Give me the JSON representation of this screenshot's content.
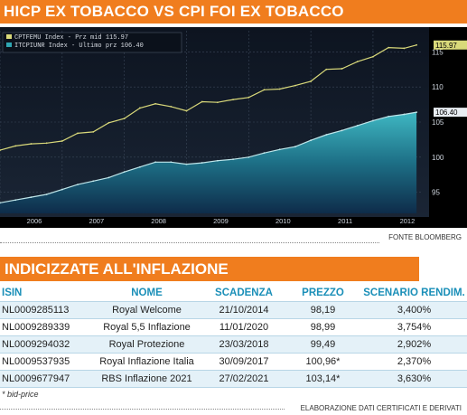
{
  "header": {
    "title": "HICP EX TOBACCO VS CPI FOI EX TOBACCO"
  },
  "source": "FONTE BLOOMBERG",
  "chart_data": {
    "type": "line",
    "x_ticks": [
      "2006",
      "2007",
      "2008",
      "2009",
      "2010",
      "2011",
      "2012"
    ],
    "y_ticks": [
      95,
      100,
      105,
      110,
      115
    ],
    "ylim": [
      92,
      118
    ],
    "xlim": [
      2006,
      2012.8
    ],
    "legend": {
      "position": "top-left",
      "entries": [
        "CPTFEMU Index - Prz mid 115.97",
        "ITCPIUNR Index - Ultimo prz 106.40"
      ]
    },
    "series": [
      {
        "name": "CPTFEMU Index - Prz mid",
        "color": "#d9d97a",
        "last_value": "115.97",
        "x": [
          2006.0,
          2006.25,
          2006.5,
          2006.75,
          2007.0,
          2007.25,
          2007.5,
          2007.75,
          2008.0,
          2008.25,
          2008.5,
          2008.75,
          2009.0,
          2009.25,
          2009.5,
          2009.75,
          2010.0,
          2010.25,
          2010.5,
          2010.75,
          2011.0,
          2011.25,
          2011.5,
          2011.75,
          2012.0,
          2012.25,
          2012.5,
          2012.7
        ],
        "y": [
          101.0,
          101.6,
          101.9,
          102.0,
          102.3,
          103.4,
          103.6,
          104.9,
          105.5,
          107.0,
          107.6,
          107.2,
          106.6,
          107.9,
          107.8,
          108.2,
          108.5,
          109.6,
          109.7,
          110.2,
          110.8,
          112.5,
          112.6,
          113.6,
          114.3,
          115.6,
          115.5,
          115.97
        ]
      },
      {
        "name": "ITCPIUNR Index - Ultimo prz",
        "color": "#2fa6b2",
        "last_value": "106.40",
        "x": [
          2006.0,
          2006.25,
          2006.5,
          2006.75,
          2007.0,
          2007.25,
          2007.5,
          2007.75,
          2008.0,
          2008.25,
          2008.5,
          2008.75,
          2009.0,
          2009.25,
          2009.5,
          2009.75,
          2010.0,
          2010.25,
          2010.5,
          2010.75,
          2011.0,
          2011.25,
          2011.5,
          2011.75,
          2012.0,
          2012.25,
          2012.5,
          2012.7
        ],
        "y": [
          93.5,
          93.9,
          94.3,
          94.7,
          95.4,
          96.1,
          96.6,
          97.1,
          97.9,
          98.6,
          99.3,
          99.3,
          99.0,
          99.2,
          99.5,
          99.7,
          100.0,
          100.6,
          101.1,
          101.5,
          102.4,
          103.2,
          103.8,
          104.5,
          105.2,
          105.8,
          106.1,
          106.4
        ]
      }
    ]
  },
  "table": {
    "title": "INDICIZZATE ALL'INFLAZIONE",
    "headers": [
      "ISIN",
      "NOME",
      "SCADENZA",
      "PREZZO",
      "SCENARIO RENDIM."
    ],
    "rows": [
      [
        "NL0009285113",
        "Royal Welcome",
        "21/10/2014",
        "98,19",
        "3,400%"
      ],
      [
        "NL0009289339",
        "Royal 5,5 Inflazione",
        "11/01/2020",
        "98,99",
        "3,754%"
      ],
      [
        "NL0009294032",
        "Royal Protezione",
        "23/03/2018",
        "99,49",
        "2,902%"
      ],
      [
        "NL0009537935",
        "Royal Inflazione Italia",
        "30/09/2017",
        "100,96*",
        "2,370%"
      ],
      [
        "NL0009677947",
        "RBS Inflazione 2021",
        "27/02/2021",
        "103,14*",
        "3,630%"
      ]
    ]
  },
  "footnote": "* bid-price",
  "credit": "ELABORAZIONE DATI CERTIFICATI E DERIVATI"
}
